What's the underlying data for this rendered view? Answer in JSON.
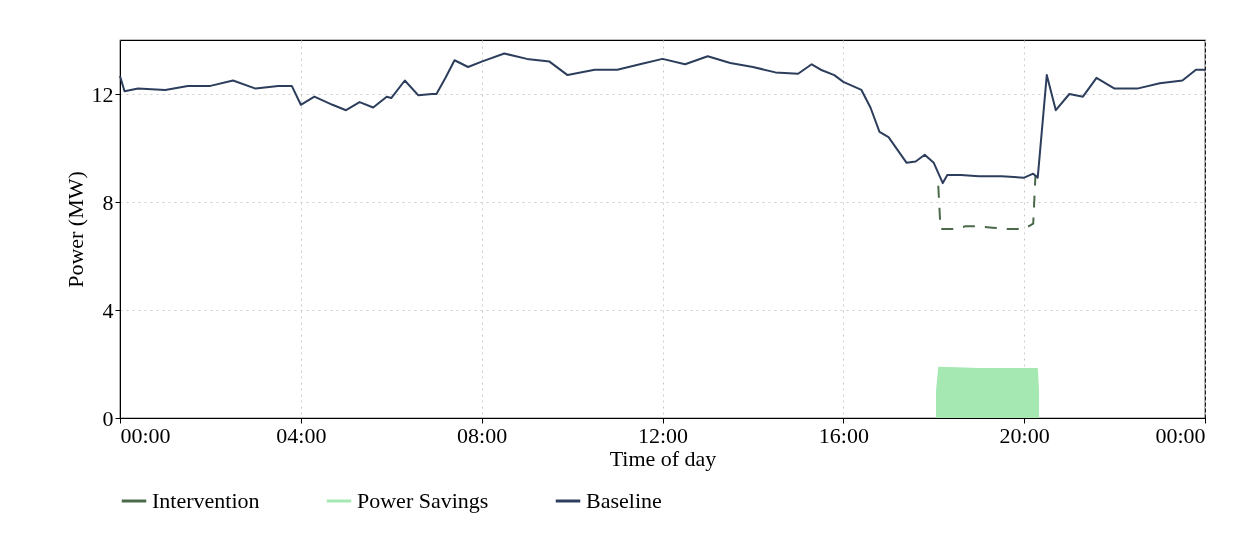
{
  "chart_data": {
    "type": "line",
    "xlabel": "Time of day",
    "ylabel": "Power (MW)",
    "xlim": [
      0,
      24
    ],
    "ylim": [
      0,
      14
    ],
    "xticks": [
      {
        "value": 0,
        "label": "00:00"
      },
      {
        "value": 4,
        "label": "04:00"
      },
      {
        "value": 8,
        "label": "08:00"
      },
      {
        "value": 12,
        "label": "12:00"
      },
      {
        "value": 16,
        "label": "16:00"
      },
      {
        "value": 20,
        "label": "20:00"
      },
      {
        "value": 24,
        "label": "00:00"
      }
    ],
    "yticks": [
      0,
      4,
      8,
      12
    ],
    "grid": true,
    "legend": "bottom",
    "series": [
      {
        "name": "Intervention",
        "line_style": "dashed",
        "color": "#4a6a4a",
        "x": [
          18.1,
          18.15,
          18.5,
          18.7,
          19.0,
          19.3,
          19.6,
          20.0,
          20.2,
          20.25
        ],
        "values": [
          8.6,
          7.0,
          7.0,
          7.1,
          7.1,
          7.05,
          7.0,
          7.0,
          7.2,
          9.0
        ]
      },
      {
        "name": "Power Savings",
        "type": "area",
        "color": "#a6e8b2",
        "x": [
          18.05,
          18.1,
          18.5,
          19.0,
          19.5,
          20.0,
          20.3,
          20.33
        ],
        "values": [
          1.0,
          1.9,
          1.88,
          1.85,
          1.85,
          1.85,
          1.85,
          1.0
        ]
      },
      {
        "name": "Baseline",
        "line_style": "solid",
        "color": "#2c3e5c",
        "x": [
          0,
          0.1,
          0.4,
          1.0,
          1.5,
          2.0,
          2.5,
          3.0,
          3.5,
          3.8,
          4.0,
          4.3,
          4.7,
          5.0,
          5.3,
          5.6,
          5.9,
          6.0,
          6.3,
          6.6,
          6.9,
          7.0,
          7.2,
          7.4,
          7.7,
          8.0,
          8.5,
          9.0,
          9.5,
          9.9,
          10.5,
          11.0,
          11.5,
          12.0,
          12.5,
          13.0,
          13.5,
          14.0,
          14.5,
          15.0,
          15.3,
          15.5,
          15.8,
          16.0,
          16.4,
          16.6,
          16.8,
          17.0,
          17.4,
          17.6,
          17.8,
          18.0,
          18.2,
          18.3,
          18.6,
          19.0,
          19.5,
          20.0,
          20.2,
          20.3,
          20.5,
          20.7,
          21.0,
          21.3,
          21.6,
          22.0,
          22.5,
          23.0,
          23.5,
          23.8,
          24.0
        ],
        "values": [
          12.67,
          12.1,
          12.2,
          12.15,
          12.3,
          12.3,
          12.5,
          12.2,
          12.3,
          12.3,
          11.6,
          11.9,
          11.6,
          11.4,
          11.7,
          11.5,
          11.9,
          11.85,
          12.5,
          11.95,
          12.0,
          12.0,
          12.6,
          13.25,
          13.0,
          13.2,
          13.5,
          13.3,
          13.2,
          12.7,
          12.9,
          12.9,
          13.1,
          13.3,
          13.1,
          13.4,
          13.15,
          13.0,
          12.8,
          12.75,
          13.1,
          12.9,
          12.7,
          12.45,
          12.15,
          11.5,
          10.6,
          10.4,
          9.45,
          9.5,
          9.75,
          9.45,
          8.7,
          9.0,
          9.0,
          8.95,
          8.95,
          8.9,
          9.05,
          8.9,
          12.7,
          11.4,
          12.0,
          11.9,
          12.6,
          12.2,
          12.2,
          12.4,
          12.5,
          12.9,
          12.9
        ]
      }
    ]
  }
}
